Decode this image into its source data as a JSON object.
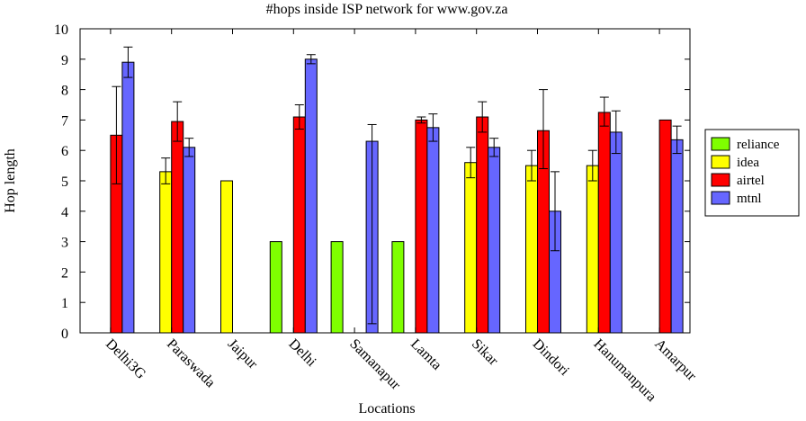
{
  "chart_data": {
    "type": "bar",
    "title": "#hops inside ISP network for www.gov.za",
    "xlabel": "Locations",
    "ylabel": "Hop length",
    "ylim": [
      0,
      10
    ],
    "yticks": [
      "0",
      "1",
      "2",
      "3",
      "4",
      "5",
      "6",
      "7",
      "8",
      "9",
      "10"
    ],
    "grid": false,
    "legend_position": "right",
    "categories": [
      "Delhi3G",
      "Paraswada",
      "Jaipur",
      "Delhi",
      "Samanapur",
      "Lamta",
      "Sikar",
      "Dindori",
      "Hanumanpura",
      "Amarpur"
    ],
    "series": [
      {
        "name": "reliance",
        "color": "#7fff00",
        "values": [
          null,
          null,
          null,
          3,
          3,
          3,
          null,
          null,
          null,
          null
        ],
        "err_low": [
          null,
          null,
          null,
          null,
          null,
          null,
          null,
          null,
          null,
          null
        ],
        "err_high": [
          null,
          null,
          null,
          null,
          null,
          null,
          null,
          null,
          null,
          null
        ]
      },
      {
        "name": "idea",
        "color": "#ffff00",
        "values": [
          null,
          5.3,
          5,
          null,
          null,
          null,
          5.6,
          5.5,
          5.5,
          null
        ],
        "err_low": [
          null,
          4.9,
          null,
          null,
          null,
          null,
          5.1,
          5.0,
          5.0,
          null
        ],
        "err_high": [
          null,
          5.75,
          null,
          null,
          null,
          null,
          6.1,
          6.0,
          6.0,
          null
        ]
      },
      {
        "name": "airtel",
        "color": "#ff0000",
        "values": [
          6.5,
          6.95,
          null,
          7.1,
          null,
          7.0,
          7.1,
          6.65,
          7.25,
          7.0
        ],
        "err_low": [
          4.9,
          6.3,
          null,
          6.7,
          null,
          6.9,
          6.6,
          5.4,
          6.8,
          null
        ],
        "err_high": [
          8.1,
          7.6,
          null,
          7.5,
          null,
          7.1,
          7.6,
          8.0,
          7.75,
          null
        ]
      },
      {
        "name": "mtnl",
        "color": "#6666ff",
        "values": [
          8.9,
          6.1,
          null,
          9.0,
          6.3,
          6.75,
          6.1,
          4.0,
          6.6,
          6.35
        ],
        "err_low": [
          8.4,
          5.8,
          null,
          8.85,
          0.3,
          6.3,
          5.8,
          2.7,
          5.9,
          5.9
        ],
        "err_high": [
          9.4,
          6.4,
          null,
          9.15,
          6.85,
          7.2,
          6.4,
          5.3,
          7.3,
          6.8
        ]
      }
    ]
  }
}
